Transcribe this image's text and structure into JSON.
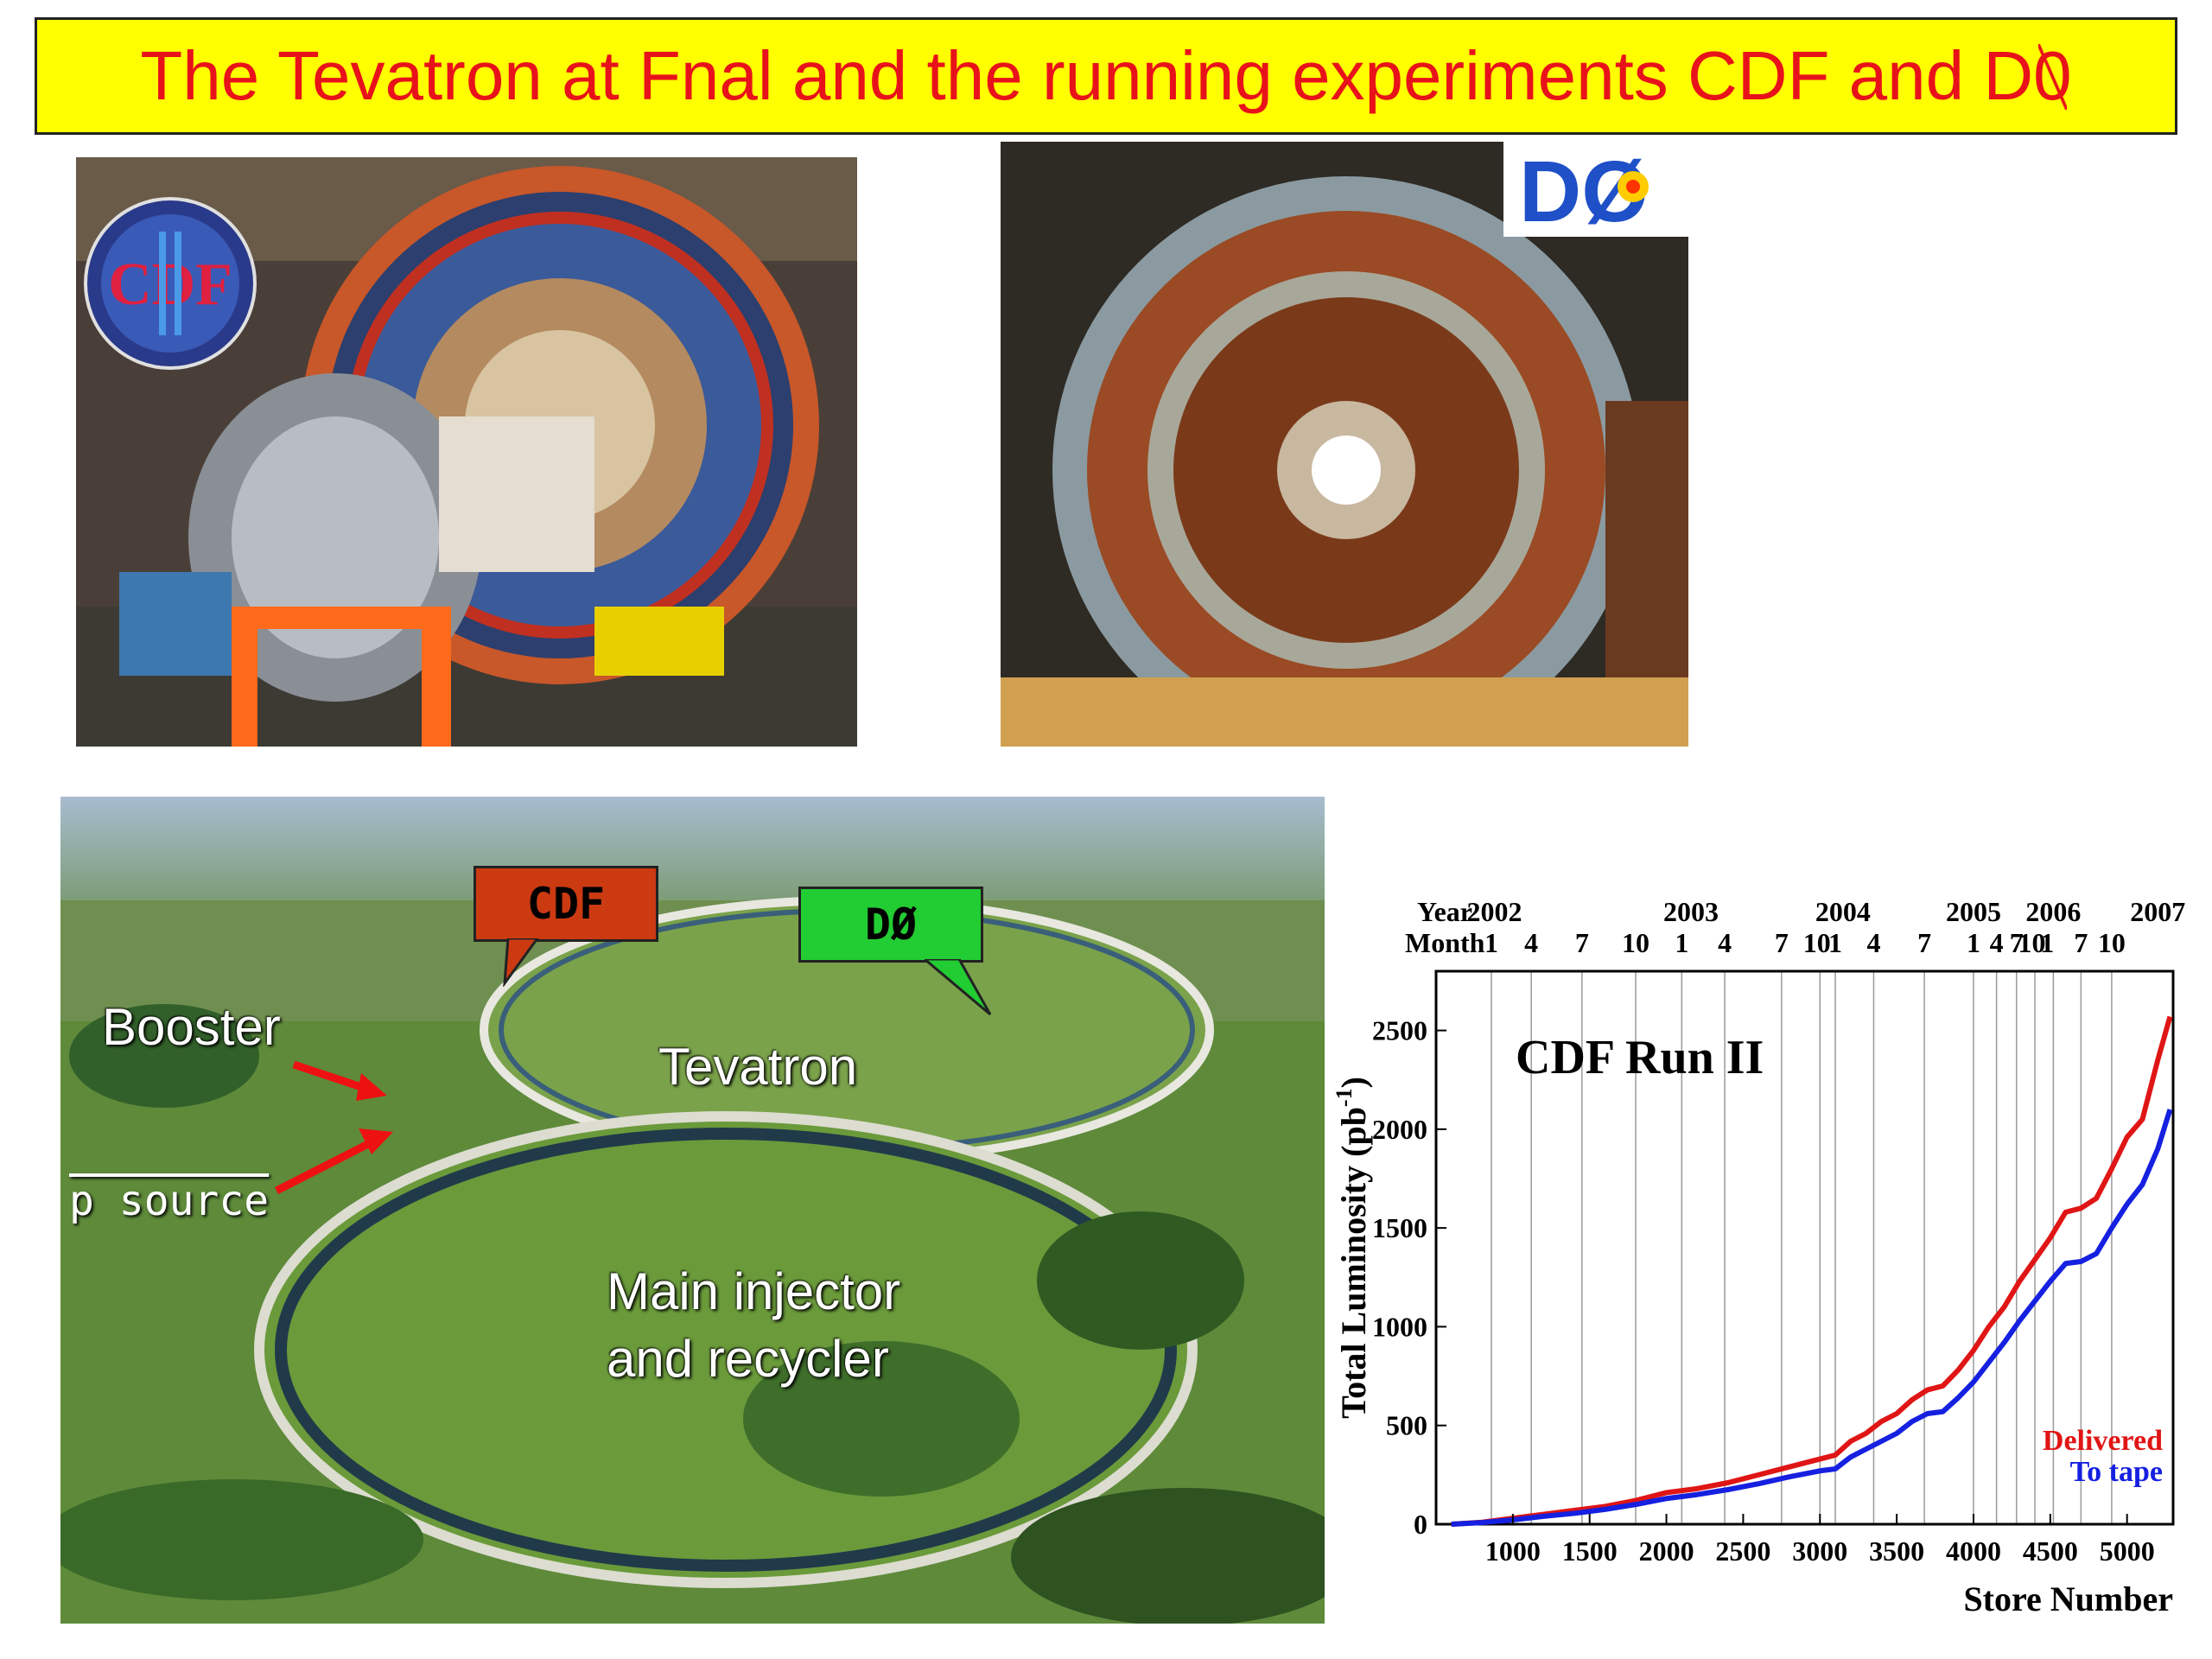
{
  "title": {
    "text_main": "The Tevatron at Fnal and the running experiments CDF and D",
    "text_last": "0"
  },
  "logos": {
    "cdf_logo": "CDF II",
    "d0_logo": "DØ"
  },
  "aerial": {
    "callouts": [
      {
        "label": "CDF",
        "color": "#cc3a12"
      },
      {
        "label": "DØ",
        "color": "#22cc33"
      }
    ],
    "labels": {
      "booster": "Booster",
      "tevatron": "Tevatron",
      "pbar_source": "p source",
      "main_injector_line1": "Main injector",
      "main_injector_line2": "and recycler"
    },
    "arrow_color": "#ee1111"
  },
  "chart_data": {
    "type": "line",
    "title": "CDF Run II",
    "xlabel": "Store Number",
    "ylabel": "Total Luminosity (pb",
    "ylabel_sup": "-1",
    "ylabel_close": ")",
    "xlim": [
      500,
      5300
    ],
    "ylim": [
      0,
      2800
    ],
    "x_ticks": [
      1000,
      1500,
      2000,
      2500,
      3000,
      3500,
      4000,
      4500,
      5000
    ],
    "y_ticks": [
      0,
      500,
      1000,
      1500,
      2000,
      2500
    ],
    "top_axis": {
      "year_label": "Year",
      "month_label": "Month",
      "years": [
        {
          "label": "2002",
          "x": 880
        },
        {
          "label": "2003",
          "x": 2160
        },
        {
          "label": "2004",
          "x": 3150
        },
        {
          "label": "2005",
          "x": 4000
        },
        {
          "label": "2006",
          "x": 4520
        },
        {
          "label": "2007",
          "x": 5200
        }
      ],
      "months": [
        {
          "label": "1",
          "x": 860
        },
        {
          "label": "4",
          "x": 1120
        },
        {
          "label": "7",
          "x": 1450
        },
        {
          "label": "10",
          "x": 1800
        },
        {
          "label": "1",
          "x": 2100
        },
        {
          "label": "4",
          "x": 2380
        },
        {
          "label": "7",
          "x": 2750
        },
        {
          "label": "10",
          "x": 2980
        },
        {
          "label": "1",
          "x": 3100
        },
        {
          "label": "4",
          "x": 3350
        },
        {
          "label": "7",
          "x": 3680
        },
        {
          "label": "1",
          "x": 4000
        },
        {
          "label": "4",
          "x": 4150
        },
        {
          "label": "7",
          "x": 4280
        },
        {
          "label": "10",
          "x": 4380
        },
        {
          "label": "1",
          "x": 4480
        },
        {
          "label": "7",
          "x": 4700
        },
        {
          "label": "10",
          "x": 4900
        }
      ],
      "gridlines": [
        860,
        1120,
        1450,
        1800,
        2100,
        2380,
        2750,
        3000,
        3100,
        3350,
        3680,
        4000,
        4150,
        4280,
        4400,
        4520,
        4700,
        4900
      ]
    },
    "series": [
      {
        "name": "Delivered",
        "color": "#e01515",
        "x": [
          600,
          800,
          1000,
          1200,
          1400,
          1600,
          1800,
          2000,
          2200,
          2400,
          2600,
          2800,
          3000,
          3100,
          3200,
          3300,
          3400,
          3500,
          3600,
          3700,
          3800,
          3900,
          4000,
          4100,
          4200,
          4300,
          4400,
          4500,
          4600,
          4700,
          4800,
          4900,
          5000,
          5100,
          5200,
          5280
        ],
        "values": [
          0,
          10,
          30,
          50,
          70,
          90,
          120,
          160,
          180,
          210,
          250,
          290,
          330,
          350,
          420,
          460,
          520,
          560,
          630,
          680,
          700,
          780,
          880,
          1000,
          1100,
          1230,
          1340,
          1450,
          1580,
          1600,
          1650,
          1800,
          1960,
          2050,
          2350,
          2570
        ]
      },
      {
        "name": "To tape",
        "color": "#1520e0",
        "x": [
          600,
          800,
          1000,
          1200,
          1400,
          1600,
          1800,
          2000,
          2200,
          2400,
          2600,
          2800,
          3000,
          3100,
          3200,
          3300,
          3400,
          3500,
          3600,
          3700,
          3800,
          3900,
          4000,
          4100,
          4200,
          4300,
          4400,
          4500,
          4600,
          4700,
          4800,
          4900,
          5000,
          5100,
          5200,
          5280
        ],
        "values": [
          0,
          8,
          22,
          40,
          55,
          75,
          100,
          130,
          150,
          175,
          205,
          240,
          270,
          280,
          340,
          380,
          420,
          460,
          520,
          560,
          570,
          640,
          720,
          820,
          920,
          1030,
          1130,
          1230,
          1320,
          1330,
          1370,
          1500,
          1620,
          1720,
          1900,
          2100
        ]
      }
    ]
  }
}
